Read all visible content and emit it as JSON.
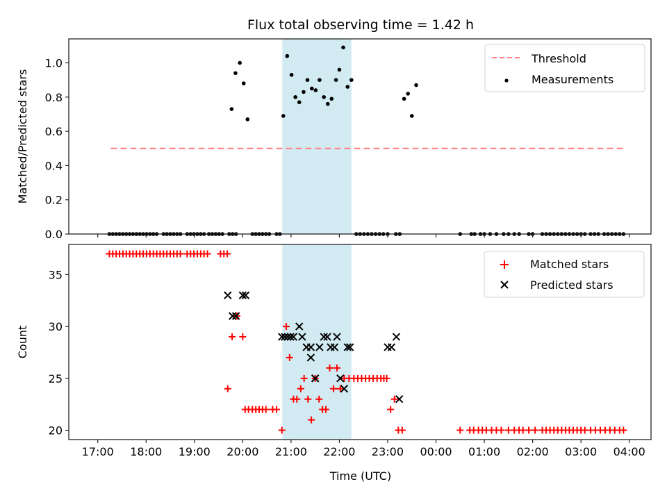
{
  "chart_data": [
    {
      "type": "scatter",
      "title": "Flux total observing time = 1.42 h",
      "xlabel": "",
      "ylabel": "Matched/Predicted stars",
      "x_units": "hours since 17:00 UTC",
      "xlim": [
        -0.6,
        11.45
      ],
      "ylim": [
        0,
        1.14
      ],
      "yticks": [
        0.0,
        0.2,
        0.4,
        0.6,
        0.8,
        1.0
      ],
      "ytick_labels": [
        "0.0",
        "0.2",
        "0.4",
        "0.6",
        "0.8",
        "1.0"
      ],
      "xtick_values": [
        0,
        1,
        2,
        3,
        4,
        5,
        6,
        7,
        8,
        9,
        10,
        11
      ],
      "shaded_span": {
        "x0": 3.82,
        "x1": 5.25,
        "color": "#add8e6"
      },
      "legend": {
        "placement": "top-right",
        "entries": [
          {
            "label": "Threshold",
            "style": "dashed-line",
            "color": "#ff7f7f"
          },
          {
            "label": "Measurements",
            "style": "dot",
            "color": "#000000"
          }
        ]
      },
      "series": [
        {
          "name": "Threshold",
          "kind": "line",
          "color": "#ff7f7f",
          "x": [
            0.27,
            10.9
          ],
          "y": [
            0.5,
            0.5
          ]
        },
        {
          "name": "Measurements",
          "kind": "points",
          "color": "#000000",
          "x": [
            0.24,
            0.31,
            0.38,
            0.45,
            0.52,
            0.59,
            0.66,
            0.73,
            0.8,
            0.87,
            0.94,
            1.01,
            1.08,
            1.15,
            1.22,
            1.36,
            1.43,
            1.5,
            1.57,
            1.64,
            1.71,
            1.85,
            1.92,
            1.99,
            2.06,
            2.13,
            2.2,
            2.3,
            2.37,
            2.44,
            2.51,
            2.58,
            2.72,
            2.79,
            2.86,
            2.77,
            2.85,
            2.94,
            3.02,
            3.1,
            3.2,
            3.27,
            3.34,
            3.41,
            3.48,
            3.55,
            3.7,
            3.77,
            3.84,
            3.92,
            4.01,
            4.09,
            4.17,
            4.26,
            4.34,
            4.43,
            4.51,
            4.59,
            4.68,
            4.76,
            4.84,
            4.93,
            5.0,
            5.08,
            5.17,
            5.25,
            5.35,
            5.43,
            5.51,
            5.59,
            5.67,
            5.75,
            5.83,
            5.91,
            6.0,
            6.17,
            6.25,
            6.34,
            6.42,
            6.5,
            6.59,
            7.5,
            7.73,
            7.8,
            7.92,
            8.0,
            8.12,
            8.25,
            8.4,
            8.5,
            8.62,
            8.72,
            8.92,
            9.0,
            9.2,
            9.28,
            9.36,
            9.44,
            9.52,
            9.6,
            9.68,
            9.76,
            9.84,
            9.92,
            10.0,
            10.08,
            10.2,
            10.28,
            10.36,
            10.48,
            10.56,
            10.64,
            10.72,
            10.8,
            10.88
          ],
          "y": [
            0,
            0,
            0,
            0,
            0,
            0,
            0,
            0,
            0,
            0,
            0,
            0,
            0,
            0,
            0,
            0,
            0,
            0,
            0,
            0,
            0,
            0,
            0,
            0,
            0,
            0,
            0,
            0,
            0,
            0,
            0,
            0,
            0,
            0,
            0,
            0.73,
            0.94,
            1.0,
            0.88,
            0.67,
            0,
            0,
            0,
            0,
            0,
            0,
            0,
            0,
            0.69,
            1.04,
            0.93,
            0.8,
            0.77,
            0.83,
            0.9,
            0.85,
            0.84,
            0.9,
            0.8,
            0.76,
            0.79,
            0.9,
            0.96,
            1.09,
            0.86,
            0.9,
            0,
            0,
            0,
            0,
            0,
            0,
            0,
            0,
            0,
            0,
            0,
            0.79,
            0.82,
            0.69,
            0.87,
            0,
            0,
            0,
            0,
            0,
            0,
            0,
            0,
            0,
            0,
            0,
            0,
            0,
            0,
            0,
            0,
            0,
            0,
            0,
            0,
            0,
            0,
            0,
            0,
            0,
            0,
            0,
            0,
            0,
            0,
            0,
            0,
            0,
            0
          ]
        }
      ]
    },
    {
      "type": "scatter",
      "title": "",
      "xlabel": "Time (UTC)",
      "ylabel": "Count",
      "x_units": "hours since 17:00 UTC",
      "xlim": [
        -0.6,
        11.45
      ],
      "ylim": [
        19.1,
        37.9
      ],
      "yticks": [
        20,
        25,
        30,
        35
      ],
      "ytick_labels": [
        "20",
        "25",
        "30",
        "35"
      ],
      "xtick_values": [
        0,
        1,
        2,
        3,
        4,
        5,
        6,
        7,
        8,
        9,
        10,
        11
      ],
      "xtick_labels": [
        "17:00",
        "18:00",
        "19:00",
        "20:00",
        "21:00",
        "22:00",
        "23:00",
        "00:00",
        "01:00",
        "02:00",
        "03:00",
        "04:00"
      ],
      "shaded_span": {
        "x0": 3.82,
        "x1": 5.25,
        "color": "#add8e6"
      },
      "legend": {
        "placement": "top-right",
        "entries": [
          {
            "label": "Matched stars",
            "style": "plus",
            "color": "#ff0000"
          },
          {
            "label": "Predicted stars",
            "style": "x",
            "color": "#000000"
          }
        ]
      },
      "series": [
        {
          "name": "Matched stars",
          "kind": "plus",
          "color": "#ff0000",
          "x": [
            0.24,
            0.31,
            0.38,
            0.45,
            0.52,
            0.59,
            0.66,
            0.73,
            0.8,
            0.87,
            0.94,
            1.01,
            1.08,
            1.15,
            1.22,
            1.29,
            1.36,
            1.43,
            1.5,
            1.57,
            1.64,
            1.71,
            1.85,
            1.92,
            1.99,
            2.06,
            2.13,
            2.2,
            2.27,
            2.54,
            2.61,
            2.68,
            2.69,
            2.78,
            2.88,
            3.0,
            3.05,
            3.12,
            3.2,
            3.27,
            3.34,
            3.41,
            3.48,
            3.62,
            3.7,
            3.81,
            3.9,
            3.97,
            4.05,
            4.12,
            4.2,
            4.27,
            4.35,
            4.42,
            4.5,
            4.58,
            4.65,
            4.72,
            4.8,
            4.88,
            4.95,
            5.02,
            5.1,
            5.2,
            5.3,
            5.38,
            5.46,
            5.54,
            5.62,
            5.7,
            5.78,
            5.86,
            5.92,
            5.98,
            6.06,
            6.14,
            6.22,
            6.3,
            7.5,
            7.7,
            7.78,
            7.88,
            7.96,
            8.04,
            8.15,
            8.25,
            8.35,
            8.5,
            8.62,
            8.72,
            8.8,
            8.92,
            9.05,
            9.2,
            9.28,
            9.36,
            9.44,
            9.52,
            9.6,
            9.68,
            9.76,
            9.84,
            9.92,
            10.0,
            10.08,
            10.2,
            10.3,
            10.4,
            10.5,
            10.6,
            10.7,
            10.8,
            10.88
          ],
          "y": [
            37,
            37,
            37,
            37,
            37,
            37,
            37,
            37,
            37,
            37,
            37,
            37,
            37,
            37,
            37,
            37,
            37,
            37,
            37,
            37,
            37,
            37,
            37,
            37,
            37,
            37,
            37,
            37,
            37,
            37,
            37,
            37,
            24,
            29,
            31,
            29,
            22,
            22,
            22,
            22,
            22,
            22,
            22,
            22,
            22,
            20,
            30,
            27,
            23,
            23,
            24,
            25,
            23,
            21,
            25,
            23,
            22,
            22,
            26,
            24,
            26,
            24,
            25,
            25,
            25,
            25,
            25,
            25,
            25,
            25,
            25,
            25,
            25,
            25,
            22,
            23,
            20,
            20,
            20,
            20,
            20,
            20,
            20,
            20,
            20,
            20,
            20,
            20,
            20,
            20,
            20,
            20,
            20,
            20,
            20,
            20,
            20,
            20,
            20,
            20,
            20,
            20,
            20,
            20,
            20,
            20,
            20,
            20,
            20,
            20,
            20,
            20,
            20
          ]
        },
        {
          "name": "Predicted stars",
          "kind": "x",
          "color": "#000000",
          "x": [
            2.69,
            2.79,
            2.86,
            3.0,
            3.06,
            3.81,
            3.87,
            3.93,
            3.99,
            4.05,
            4.17,
            4.23,
            4.32,
            4.41,
            4.5,
            4.59,
            4.68,
            4.75,
            4.82,
            4.95,
            5.02,
            5.1,
            5.17,
            5.22,
            4.41,
            4.5,
            4.9,
            6.0,
            6.08,
            6.18,
            6.24
          ],
          "y": [
            33,
            31,
            31,
            33,
            33,
            29,
            29,
            29,
            29,
            29,
            30,
            29,
            28,
            27,
            25,
            28,
            29,
            29,
            28,
            29,
            25,
            24,
            28,
            28,
            28,
            25,
            28,
            28,
            28,
            29,
            23
          ]
        }
      ]
    }
  ]
}
